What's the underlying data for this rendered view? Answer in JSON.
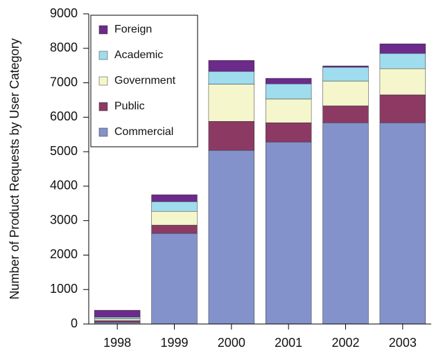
{
  "chart_data": {
    "type": "stacked_bar",
    "y_label": "Number of Product Requests by User Category",
    "categories": [
      "1998",
      "1999",
      "2000",
      "2001",
      "2002",
      "2003"
    ],
    "series": [
      {
        "name": "Commercial",
        "color": "#8392ca",
        "values": [
          50,
          2630,
          5040,
          5280,
          5840,
          5840
        ]
      },
      {
        "name": "Public",
        "color": "#8c3a64",
        "values": [
          50,
          240,
          840,
          560,
          490,
          810
        ]
      },
      {
        "name": "Government",
        "color": "#f6f6cc",
        "values": [
          50,
          400,
          1080,
          690,
          720,
          760
        ]
      },
      {
        "name": "Academic",
        "color": "#9fdcee",
        "values": [
          50,
          280,
          370,
          440,
          400,
          440
        ]
      },
      {
        "name": "Foreign",
        "color": "#6c2a8a",
        "values": [
          200,
          200,
          320,
          160,
          40,
          280
        ]
      }
    ],
    "ylim": [
      0,
      9000
    ],
    "yticks": [
      0,
      1000,
      2000,
      3000,
      4000,
      5000,
      6000,
      7000,
      8000,
      9000
    ],
    "grid": false,
    "legend": "upper left"
  }
}
